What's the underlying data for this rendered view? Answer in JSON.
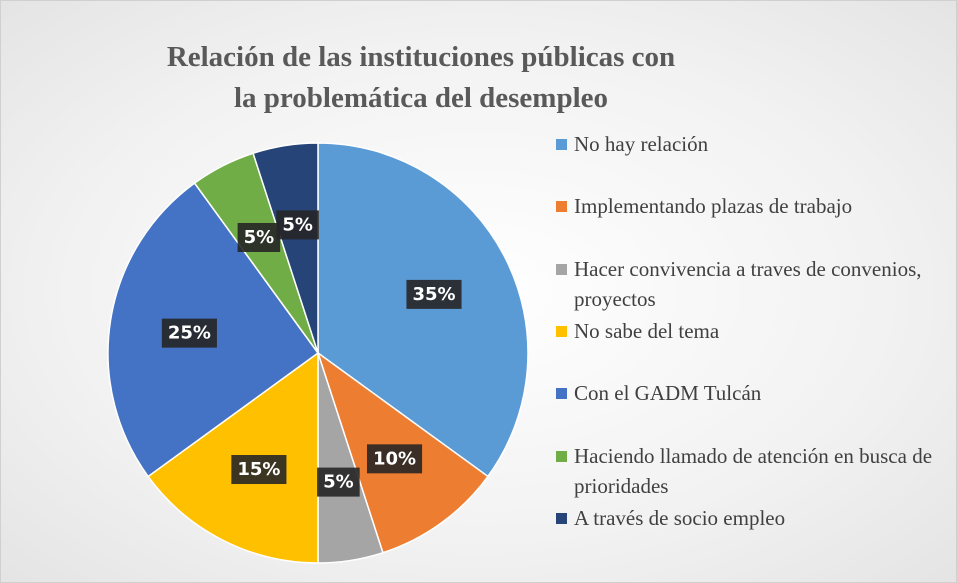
{
  "chart_data": {
    "type": "pie",
    "title": "Relación de las instituciones públicas con la problemática del desempleo",
    "categories": [
      "No hay relación",
      "Implementando plazas de trabajo",
      "Hacer convivencia a traves de convenios, proyectos",
      "No sabe del tema",
      "Con el GADM Tulcán",
      "Haciendo llamado de atención en busca de prioridades",
      "A través de socio empleo"
    ],
    "values": [
      35,
      10,
      5,
      15,
      25,
      5,
      5
    ],
    "value_labels": [
      "35%",
      "10%",
      "5%",
      "15%",
      "25%",
      "5%",
      "5%"
    ],
    "colors": [
      "#5b9bd5",
      "#ed7d31",
      "#a5a5a5",
      "#ffc000",
      "#4472c4",
      "#70ad47",
      "#264478"
    ],
    "legend": "right"
  }
}
